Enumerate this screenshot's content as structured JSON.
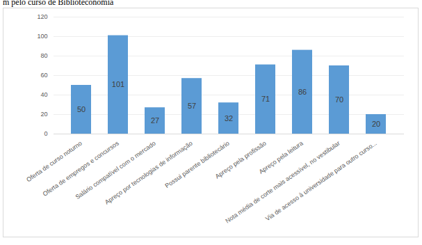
{
  "chart_data": {
    "type": "bar",
    "title": "m pelo curso de Biblioteconomia",
    "categories": [
      "Oferta de curso noturno",
      "Oferta de empregos e concursos",
      "Salário compatível com o mercado",
      "Apreço por tecnologias de informação",
      "Possui parente bibliotecário",
      "Apreço pela profissão",
      "Apreço pela leitura",
      "Nota média de corte mais acessível, no vestibular",
      "Via de acesso à universidade para outro curso..."
    ],
    "values": [
      50,
      101,
      27,
      57,
      32,
      71,
      86,
      70,
      20
    ],
    "color": "#5b9bd5",
    "ylim": [
      0,
      120
    ],
    "yticks": [
      0,
      20,
      40,
      60,
      80,
      100,
      120
    ],
    "grid": true,
    "data_labels": true
  }
}
